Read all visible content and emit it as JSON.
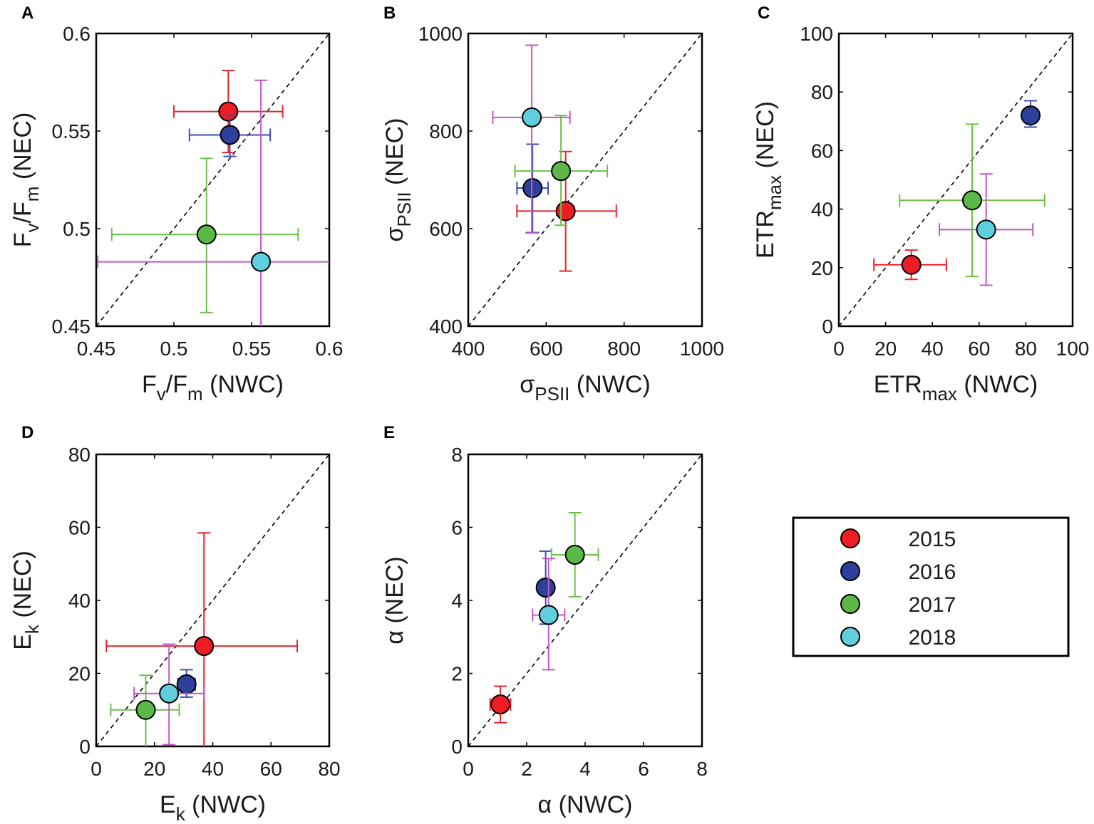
{
  "legend": [
    {
      "label": "2015",
      "color": "#ee1c25"
    },
    {
      "label": "2016",
      "color": "#2e3f9c"
    },
    {
      "label": "2017",
      "color": "#5cb847"
    },
    {
      "label": "2018",
      "color": "#5fcfdd"
    }
  ],
  "errorbar_colors": [
    "#e8262f",
    "#3b4eb0",
    "#6cc04a",
    "#c458c4"
  ],
  "chart_data": [
    {
      "panel": "A",
      "type": "scatter",
      "xlabel": {
        "main": "F",
        "sub": "v",
        "mid": "/F",
        "sub2": "m",
        "tail": " (NWC)"
      },
      "ylabel": {
        "main": "F",
        "sub": "v",
        "mid": "/F",
        "sub2": "m",
        "tail": " (NEC)"
      },
      "xlim": [
        0.45,
        0.6
      ],
      "ylim": [
        0.45,
        0.6
      ],
      "xticks": [
        "0.45",
        "0.5",
        "0.55",
        "0.6"
      ],
      "xtickvals": [
        0.45,
        0.5,
        0.55,
        0.6
      ],
      "yticks": [
        "0.45",
        "0.5",
        "0.55",
        "0.6"
      ],
      "ytickvals": [
        0.45,
        0.5,
        0.55,
        0.6
      ],
      "points": [
        {
          "year": "2015",
          "x": 0.535,
          "y": 0.56,
          "xerr": [
            0.5,
            0.57
          ],
          "yerr": [
            0.539,
            0.581
          ]
        },
        {
          "year": "2016",
          "x": 0.536,
          "y": 0.548,
          "xerr": [
            0.51,
            0.562
          ],
          "yerr": [
            0.537,
            0.558
          ]
        },
        {
          "year": "2017",
          "x": 0.521,
          "y": 0.497,
          "xerr": [
            0.46,
            0.58
          ],
          "yerr": [
            0.457,
            0.536
          ]
        },
        {
          "year": "2018",
          "x": 0.556,
          "y": 0.483,
          "xerr": [
            0.451,
            0.6
          ],
          "yerr": [
            0.45,
            0.576
          ]
        }
      ]
    },
    {
      "panel": "B",
      "type": "scatter",
      "xlabel": {
        "main": "σ",
        "sub": "PSII",
        "mid": "",
        "sub2": "",
        "tail": " (NWC)"
      },
      "ylabel": {
        "main": "σ",
        "sub": "PSII",
        "mid": "",
        "sub2": "",
        "tail": " (NEC)"
      },
      "xlim": [
        400,
        1000
      ],
      "ylim": [
        400,
        1000
      ],
      "xticks": [
        "400",
        "600",
        "800",
        "1000"
      ],
      "xtickvals": [
        400,
        600,
        800,
        1000
      ],
      "yticks": [
        "400",
        "600",
        "800",
        "1000"
      ],
      "ytickvals": [
        400,
        600,
        800,
        1000
      ],
      "points": [
        {
          "year": "2015",
          "x": 650,
          "y": 636,
          "xerr": [
            525,
            780
          ],
          "yerr": [
            513,
            758
          ]
        },
        {
          "year": "2016",
          "x": 565,
          "y": 683,
          "xerr": [
            525,
            605
          ],
          "yerr": [
            592,
            773
          ]
        },
        {
          "year": "2017",
          "x": 638,
          "y": 718,
          "xerr": [
            520,
            757
          ],
          "yerr": [
            607,
            832
          ]
        },
        {
          "year": "2018",
          "x": 563,
          "y": 828,
          "xerr": [
            463,
            661
          ],
          "yerr": [
            591,
            976
          ]
        }
      ]
    },
    {
      "panel": "C",
      "type": "scatter",
      "xlabel": {
        "main": "ETR",
        "sub": "max",
        "mid": "",
        "sub2": "",
        "tail": " (NWC)"
      },
      "ylabel": {
        "main": "ETR",
        "sub": "max",
        "mid": "",
        "sub2": "",
        "tail": " (NEC)"
      },
      "xlim": [
        0,
        100
      ],
      "ylim": [
        0,
        100
      ],
      "xticks": [
        "0",
        "20",
        "40",
        "60",
        "80",
        "100"
      ],
      "xtickvals": [
        0,
        20,
        40,
        60,
        80,
        100
      ],
      "yticks": [
        "0",
        "20",
        "40",
        "60",
        "80",
        "100"
      ],
      "ytickvals": [
        0,
        20,
        40,
        60,
        80,
        100
      ],
      "points": [
        {
          "year": "2015",
          "x": 31,
          "y": 21,
          "xerr": [
            15,
            46
          ],
          "yerr": [
            16,
            26
          ]
        },
        {
          "year": "2016",
          "x": 82,
          "y": 72,
          "xerr": [
            79,
            85
          ],
          "yerr": [
            68,
            77
          ]
        },
        {
          "year": "2017",
          "x": 57,
          "y": 43,
          "xerr": [
            26,
            88
          ],
          "yerr": [
            17,
            69
          ]
        },
        {
          "year": "2018",
          "x": 63,
          "y": 33,
          "xerr": [
            43,
            83
          ],
          "yerr": [
            14,
            52
          ]
        }
      ]
    },
    {
      "panel": "D",
      "type": "scatter",
      "xlabel": {
        "main": "E",
        "sub": "k",
        "mid": "",
        "sub2": "",
        "tail": " (NWC)"
      },
      "ylabel": {
        "main": "E",
        "sub": "k",
        "mid": "",
        "sub2": "",
        "tail": " (NEC)"
      },
      "xlim": [
        0,
        80
      ],
      "ylim": [
        0,
        80
      ],
      "xticks": [
        "0",
        "20",
        "40",
        "60",
        "80"
      ],
      "xtickvals": [
        0,
        20,
        40,
        60,
        80
      ],
      "yticks": [
        "0",
        "20",
        "40",
        "60",
        "80"
      ],
      "ytickvals": [
        0,
        20,
        40,
        60,
        80
      ],
      "points": [
        {
          "year": "2015",
          "x": 37,
          "y": 27.5,
          "xerr": [
            3.5,
            69
          ],
          "yerr": [
            0,
            58.5
          ]
        },
        {
          "year": "2016",
          "x": 31,
          "y": 17,
          "xerr": [
            28,
            34
          ],
          "yerr": [
            13.5,
            21
          ]
        },
        {
          "year": "2017",
          "x": 17,
          "y": 10,
          "xerr": [
            5,
            28.5
          ],
          "yerr": [
            0,
            19.5
          ]
        },
        {
          "year": "2018",
          "x": 25,
          "y": 14.5,
          "xerr": [
            13,
            37
          ],
          "yerr": [
            0.5,
            28
          ]
        }
      ]
    },
    {
      "panel": "E",
      "type": "scatter",
      "xlabel": {
        "main": "α",
        "sub": "",
        "mid": "",
        "sub2": "",
        "tail": " (NWC)"
      },
      "ylabel": {
        "main": "α",
        "sub": "",
        "mid": "",
        "sub2": "",
        "tail": " (NEC)"
      },
      "xlim": [
        0,
        8
      ],
      "ylim": [
        0,
        8
      ],
      "xticks": [
        "0",
        "2",
        "4",
        "6",
        "8"
      ],
      "xtickvals": [
        0,
        2,
        4,
        6,
        8
      ],
      "yticks": [
        "0",
        "2",
        "4",
        "6",
        "8"
      ],
      "ytickvals": [
        0,
        2,
        4,
        6,
        8
      ],
      "points": [
        {
          "year": "2015",
          "x": 1.1,
          "y": 1.15,
          "xerr": [
            0.75,
            1.45
          ],
          "yerr": [
            0.65,
            1.65
          ]
        },
        {
          "year": "2016",
          "x": 2.65,
          "y": 4.35,
          "xerr": [
            2.5,
            2.8
          ],
          "yerr": [
            3.35,
            5.35
          ]
        },
        {
          "year": "2017",
          "x": 3.65,
          "y": 5.25,
          "xerr": [
            2.85,
            4.45
          ],
          "yerr": [
            4.1,
            6.4
          ]
        },
        {
          "year": "2018",
          "x": 2.75,
          "y": 3.6,
          "xerr": [
            2.2,
            3.3
          ],
          "yerr": [
            2.1,
            5.15
          ]
        }
      ]
    }
  ]
}
